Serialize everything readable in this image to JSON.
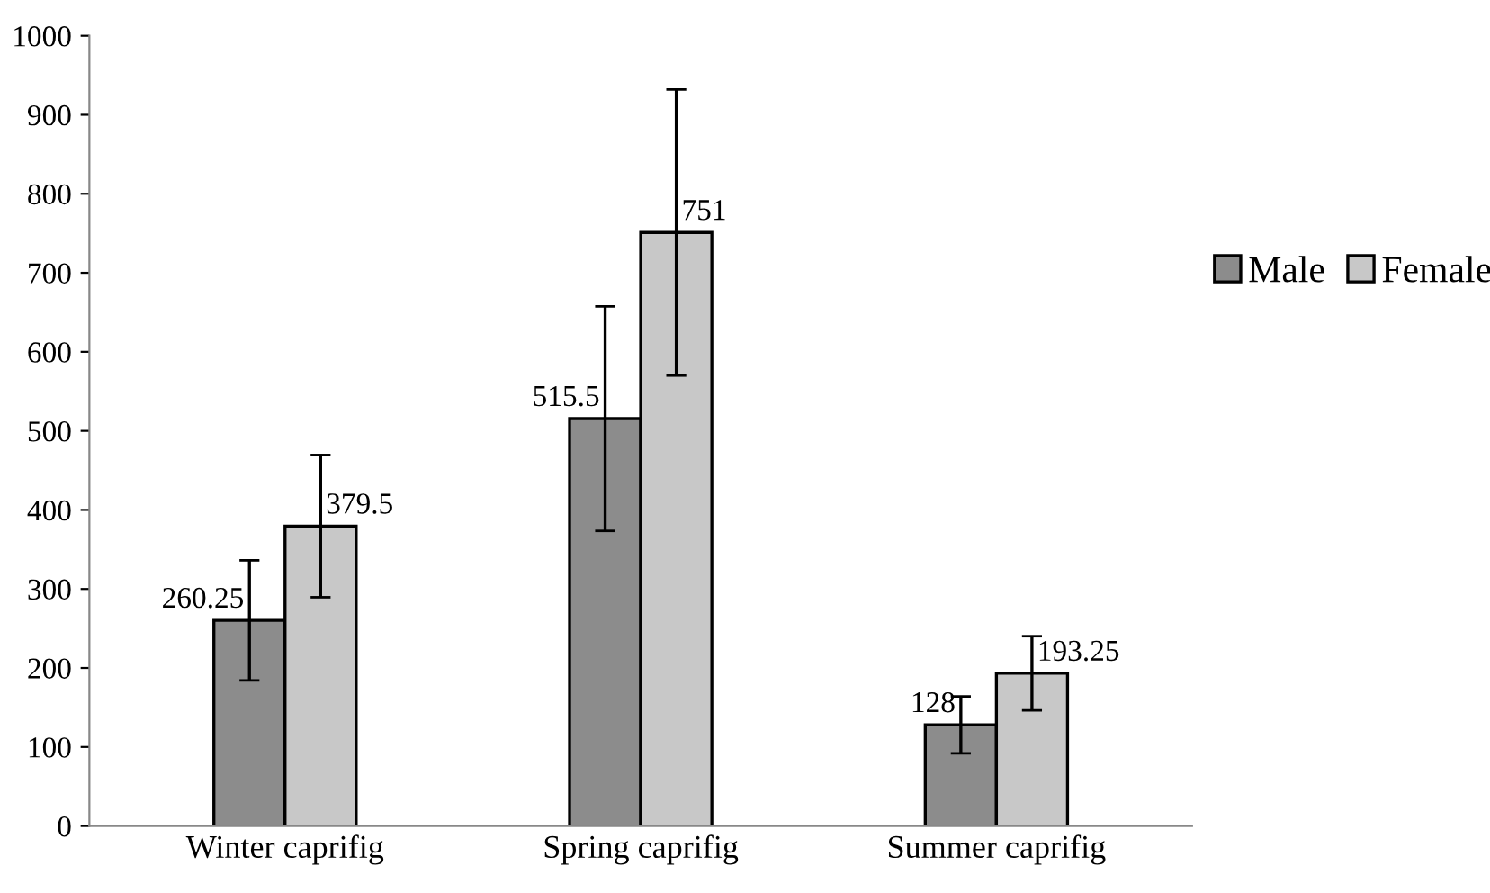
{
  "chart_data": {
    "type": "bar",
    "categories": [
      "Winter caprifig",
      "Spring caprifig",
      "Summer caprifig"
    ],
    "series": [
      {
        "name": "Male",
        "color": "#8c8c8c",
        "values": [
          260.25,
          515.5,
          128
        ],
        "errors": [
          76,
          142,
          36
        ],
        "value_labels": [
          "260.25",
          "515.5",
          "128"
        ]
      },
      {
        "name": "Female",
        "color": "#c8c8c8",
        "values": [
          379.5,
          751,
          193.25
        ],
        "errors": [
          90,
          181,
          47
        ],
        "value_labels": [
          "379.5",
          "751",
          "193.25"
        ]
      }
    ],
    "ylim": [
      0,
      1000
    ],
    "yticks": [
      0,
      100,
      200,
      300,
      400,
      500,
      600,
      700,
      800,
      900,
      1000
    ],
    "grid": false,
    "legend": "right"
  }
}
